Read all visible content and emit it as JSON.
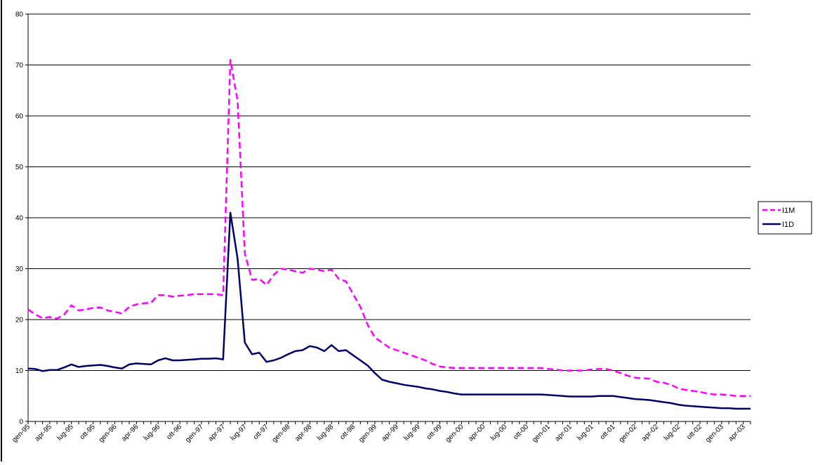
{
  "chart_data": {
    "type": "line",
    "title": "",
    "xlabel": "",
    "ylabel": "",
    "ylim": [
      0,
      80
    ],
    "yticks": [
      0,
      10,
      20,
      30,
      40,
      50,
      60,
      70,
      80
    ],
    "grid": true,
    "legend_position": "right",
    "x": [
      "gen-95",
      "feb-95",
      "mar-95",
      "apr-95",
      "mag-95",
      "giu-95",
      "lug-95",
      "ago-95",
      "set-95",
      "ott-95",
      "nov-95",
      "dic-95",
      "gen-96",
      "feb-96",
      "mar-96",
      "apr-96",
      "mag-96",
      "giu-96",
      "lug-96",
      "ago-96",
      "set-96",
      "ott-96",
      "nov-96",
      "dic-96",
      "gen-97",
      "feb-97",
      "mar-97",
      "apr-97",
      "mag-97",
      "giu-97",
      "lug-97",
      "ago-97",
      "set-97",
      "ott-97",
      "nov-97",
      "dic-97",
      "gen-98",
      "feb-98",
      "mar-98",
      "apr-98",
      "mag-98",
      "giu-98",
      "lug-98",
      "ago-98",
      "set-98",
      "ott-98",
      "nov-98",
      "dic-98",
      "gen-99",
      "feb-99",
      "mar-99",
      "apr-99",
      "mag-99",
      "giu-99",
      "lug-99",
      "ago-99",
      "set-99",
      "ott-99",
      "nov-99",
      "dic-99",
      "gen-00",
      "feb-00",
      "mar-00",
      "apr-00",
      "mag-00",
      "giu-00",
      "lug-00",
      "ago-00",
      "set-00",
      "ott-00",
      "nov-00",
      "dic-00",
      "gen-01",
      "feb-01",
      "mar-01",
      "apr-01",
      "mag-01",
      "giu-01",
      "lug-01",
      "ago-01",
      "set-01",
      "ott-01",
      "nov-01",
      "dic-01",
      "gen-02",
      "feb-02",
      "mar-02",
      "apr-02",
      "mag-02",
      "giu-02",
      "lug-02",
      "ago-02",
      "set-02",
      "ott-02",
      "nov-02",
      "dic-02",
      "gen-03",
      "feb-03",
      "mar-03",
      "apr-03",
      "mag-03"
    ],
    "tick_labels": [
      "gen-95",
      "apr-95",
      "lug-95",
      "ott-95",
      "gen-96",
      "apr-96",
      "lug-96",
      "ott-96",
      "gen-97",
      "apr-97",
      "lug-97",
      "ott-97",
      "gen-98",
      "apr-98",
      "lug-98",
      "ott-98",
      "gen-99",
      "apr-99",
      "lug-99",
      "ott-99",
      "gen-00",
      "apr-00",
      "lug-00",
      "ott-00",
      "gen-01",
      "apr-01",
      "lug-01",
      "ott-01",
      "gen-02",
      "apr-02",
      "lug-02",
      "ott-02",
      "gen-03",
      "apr-03"
    ],
    "series": [
      {
        "name": "I1M",
        "color": "#ff00ff",
        "dashed": true,
        "values": [
          22.0,
          21.0,
          20.3,
          20.5,
          20.2,
          21.0,
          22.8,
          21.8,
          22.0,
          22.3,
          22.4,
          21.8,
          21.5,
          21.2,
          22.5,
          23.0,
          23.2,
          23.3,
          24.8,
          24.8,
          24.5,
          24.7,
          24.8,
          25.0,
          25.0,
          25.0,
          25.0,
          24.8,
          71.0,
          63.0,
          33.0,
          27.8,
          28.0,
          26.8,
          28.8,
          30.0,
          29.8,
          29.5,
          29.2,
          30.0,
          29.8,
          29.5,
          29.8,
          28.0,
          27.5,
          25.0,
          22.5,
          19.0,
          16.5,
          15.5,
          14.5,
          14.0,
          13.5,
          13.0,
          12.5,
          12.0,
          11.3,
          10.8,
          10.6,
          10.5,
          10.5,
          10.5,
          10.5,
          10.5,
          10.5,
          10.5,
          10.5,
          10.5,
          10.5,
          10.5,
          10.5,
          10.5,
          10.3,
          10.2,
          10.0,
          10.0,
          10.0,
          10.0,
          10.2,
          10.3,
          10.3,
          10.0,
          9.5,
          9.0,
          8.6,
          8.5,
          8.4,
          7.8,
          7.6,
          7.2,
          6.5,
          6.2,
          6.0,
          5.8,
          5.5,
          5.3,
          5.3,
          5.2,
          5.0,
          5.0,
          5.0
        ]
      },
      {
        "name": "I1D",
        "color": "#000066",
        "dashed": false,
        "values": [
          10.4,
          10.3,
          9.9,
          10.1,
          10.1,
          10.6,
          11.2,
          10.7,
          10.9,
          11.0,
          11.1,
          10.9,
          10.6,
          10.4,
          11.2,
          11.4,
          11.3,
          11.2,
          12.0,
          12.4,
          12.0,
          12.0,
          12.1,
          12.2,
          12.3,
          12.3,
          12.4,
          12.2,
          41.0,
          32.0,
          15.5,
          13.2,
          13.5,
          11.7,
          12.0,
          12.5,
          13.2,
          13.8,
          14.0,
          14.8,
          14.5,
          13.8,
          15.0,
          13.8,
          14.0,
          13.0,
          12.0,
          11.0,
          9.5,
          8.2,
          7.8,
          7.5,
          7.2,
          7.0,
          6.8,
          6.5,
          6.3,
          6.0,
          5.8,
          5.5,
          5.3,
          5.3,
          5.3,
          5.3,
          5.3,
          5.3,
          5.3,
          5.3,
          5.3,
          5.3,
          5.3,
          5.3,
          5.2,
          5.1,
          5.0,
          4.9,
          4.9,
          4.9,
          4.9,
          5.0,
          5.0,
          5.0,
          4.8,
          4.6,
          4.4,
          4.3,
          4.2,
          4.0,
          3.8,
          3.6,
          3.3,
          3.1,
          3.0,
          2.9,
          2.8,
          2.7,
          2.6,
          2.6,
          2.5,
          2.5,
          2.5
        ]
      }
    ]
  }
}
